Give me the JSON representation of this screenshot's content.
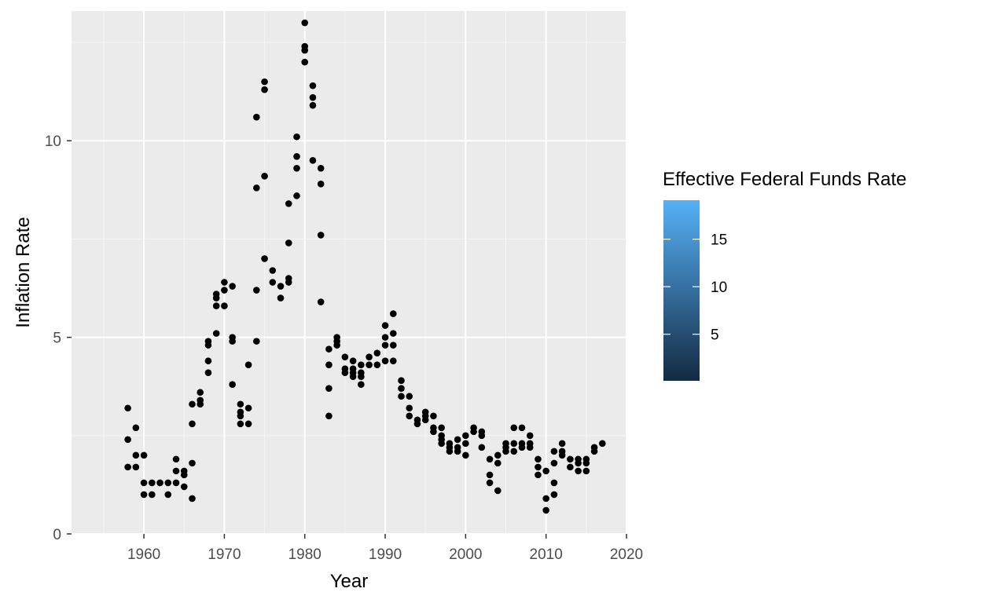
{
  "chart_data": {
    "type": "scatter",
    "title": "",
    "xlabel": "Year",
    "ylabel": "Inflation Rate",
    "xlim": [
      1951,
      2020
    ],
    "ylim": [
      0,
      13.3
    ],
    "x_ticks": [
      1960,
      1970,
      1980,
      1990,
      2000,
      2010,
      2020
    ],
    "y_ticks": [
      0,
      5,
      10
    ],
    "grid": true,
    "point_color": "#000000",
    "panel_background": "#ebebeb",
    "legend": {
      "title": "Effective Federal Funds Rate",
      "placement": "right",
      "type": "colorbar",
      "range": [
        0.1,
        19.1
      ],
      "ticks": [
        5,
        10,
        15
      ],
      "color_low": "#132b43",
      "color_high": "#56b1f7"
    },
    "points": [
      [
        1958,
        3.2
      ],
      [
        1958,
        2.4
      ],
      [
        1958,
        1.7
      ],
      [
        1959,
        2.7
      ],
      [
        1959,
        2.0
      ],
      [
        1959,
        1.7
      ],
      [
        1960,
        2.0
      ],
      [
        1960,
        1.3
      ],
      [
        1960,
        1.0
      ],
      [
        1961,
        1.3
      ],
      [
        1961,
        1.0
      ],
      [
        1962,
        1.3
      ],
      [
        1963,
        1.3
      ],
      [
        1963,
        1.0
      ],
      [
        1964,
        1.9
      ],
      [
        1964,
        1.6
      ],
      [
        1964,
        1.3
      ],
      [
        1965,
        1.6
      ],
      [
        1965,
        1.5
      ],
      [
        1965,
        1.2
      ],
      [
        1966,
        3.3
      ],
      [
        1966,
        2.8
      ],
      [
        1966,
        1.8
      ],
      [
        1966,
        0.9
      ],
      [
        1967,
        3.6
      ],
      [
        1967,
        3.4
      ],
      [
        1967,
        3.3
      ],
      [
        1968,
        4.9
      ],
      [
        1968,
        4.8
      ],
      [
        1968,
        4.4
      ],
      [
        1968,
        4.1
      ],
      [
        1969,
        6.1
      ],
      [
        1969,
        6.0
      ],
      [
        1969,
        5.8
      ],
      [
        1969,
        5.1
      ],
      [
        1970,
        6.4
      ],
      [
        1970,
        6.2
      ],
      [
        1970,
        5.8
      ],
      [
        1971,
        6.3
      ],
      [
        1971,
        5.0
      ],
      [
        1971,
        4.9
      ],
      [
        1971,
        3.8
      ],
      [
        1972,
        3.3
      ],
      [
        1972,
        3.1
      ],
      [
        1972,
        3.0
      ],
      [
        1972,
        2.8
      ],
      [
        1973,
        4.3
      ],
      [
        1973,
        3.2
      ],
      [
        1973,
        2.8
      ],
      [
        1974,
        10.6
      ],
      [
        1974,
        8.8
      ],
      [
        1974,
        6.2
      ],
      [
        1974,
        4.9
      ],
      [
        1975,
        11.5
      ],
      [
        1975,
        11.3
      ],
      [
        1975,
        9.1
      ],
      [
        1975,
        7.0
      ],
      [
        1976,
        6.7
      ],
      [
        1976,
        6.4
      ],
      [
        1977,
        6.3
      ],
      [
        1977,
        6.0
      ],
      [
        1978,
        8.4
      ],
      [
        1978,
        7.4
      ],
      [
        1978,
        6.5
      ],
      [
        1978,
        6.4
      ],
      [
        1979,
        10.1
      ],
      [
        1979,
        9.6
      ],
      [
        1979,
        9.3
      ],
      [
        1979,
        8.6
      ],
      [
        1980,
        13.0
      ],
      [
        1980,
        12.4
      ],
      [
        1980,
        12.3
      ],
      [
        1980,
        12.0
      ],
      [
        1981,
        11.4
      ],
      [
        1981,
        11.1
      ],
      [
        1981,
        10.9
      ],
      [
        1981,
        9.5
      ],
      [
        1982,
        9.3
      ],
      [
        1982,
        8.9
      ],
      [
        1982,
        7.6
      ],
      [
        1982,
        5.9
      ],
      [
        1983,
        4.7
      ],
      [
        1983,
        4.3
      ],
      [
        1983,
        3.7
      ],
      [
        1983,
        3.0
      ],
      [
        1984,
        5.0
      ],
      [
        1984,
        4.9
      ],
      [
        1984,
        4.8
      ],
      [
        1985,
        4.5
      ],
      [
        1985,
        4.2
      ],
      [
        1985,
        4.1
      ],
      [
        1986,
        4.4
      ],
      [
        1986,
        4.2
      ],
      [
        1986,
        4.1
      ],
      [
        1986,
        4.0
      ],
      [
        1987,
        4.3
      ],
      [
        1987,
        4.1
      ],
      [
        1987,
        4.0
      ],
      [
        1987,
        3.8
      ],
      [
        1988,
        4.5
      ],
      [
        1988,
        4.3
      ],
      [
        1989,
        4.6
      ],
      [
        1989,
        4.3
      ],
      [
        1990,
        5.3
      ],
      [
        1990,
        5.0
      ],
      [
        1990,
        4.8
      ],
      [
        1990,
        4.4
      ],
      [
        1991,
        5.6
      ],
      [
        1991,
        5.1
      ],
      [
        1991,
        4.8
      ],
      [
        1991,
        4.4
      ],
      [
        1992,
        3.9
      ],
      [
        1992,
        3.7
      ],
      [
        1992,
        3.5
      ],
      [
        1993,
        3.5
      ],
      [
        1993,
        3.2
      ],
      [
        1993,
        3.0
      ],
      [
        1994,
        2.9
      ],
      [
        1994,
        2.8
      ],
      [
        1995,
        3.1
      ],
      [
        1995,
        3.0
      ],
      [
        1995,
        2.9
      ],
      [
        1996,
        3.0
      ],
      [
        1996,
        2.7
      ],
      [
        1996,
        2.6
      ],
      [
        1997,
        2.7
      ],
      [
        1997,
        2.5
      ],
      [
        1997,
        2.4
      ],
      [
        1997,
        2.3
      ],
      [
        1998,
        2.3
      ],
      [
        1998,
        2.2
      ],
      [
        1998,
        2.1
      ],
      [
        1999,
        2.4
      ],
      [
        1999,
        2.2
      ],
      [
        1999,
        2.1
      ],
      [
        2000,
        2.5
      ],
      [
        2000,
        2.3
      ],
      [
        2000,
        2.0
      ],
      [
        2001,
        2.7
      ],
      [
        2001,
        2.6
      ],
      [
        2002,
        2.6
      ],
      [
        2002,
        2.5
      ],
      [
        2002,
        2.2
      ],
      [
        2003,
        1.9
      ],
      [
        2003,
        1.5
      ],
      [
        2003,
        1.3
      ],
      [
        2004,
        2.0
      ],
      [
        2004,
        1.8
      ],
      [
        2004,
        1.1
      ],
      [
        2005,
        2.3
      ],
      [
        2005,
        2.2
      ],
      [
        2005,
        2.1
      ],
      [
        2006,
        2.7
      ],
      [
        2006,
        2.3
      ],
      [
        2006,
        2.1
      ],
      [
        2007,
        2.7
      ],
      [
        2007,
        2.3
      ],
      [
        2007,
        2.2
      ],
      [
        2008,
        2.5
      ],
      [
        2008,
        2.3
      ],
      [
        2008,
        2.2
      ],
      [
        2009,
        1.9
      ],
      [
        2009,
        1.7
      ],
      [
        2009,
        1.5
      ],
      [
        2010,
        1.6
      ],
      [
        2010,
        0.9
      ],
      [
        2010,
        0.6
      ],
      [
        2011,
        1.3
      ],
      [
        2011,
        1.0
      ],
      [
        2011,
        1.8
      ],
      [
        2011,
        2.1
      ],
      [
        2012,
        2.3
      ],
      [
        2012,
        2.1
      ],
      [
        2012,
        2.0
      ],
      [
        2013,
        1.9
      ],
      [
        2013,
        1.7
      ],
      [
        2014,
        1.9
      ],
      [
        2014,
        1.8
      ],
      [
        2014,
        1.6
      ],
      [
        2015,
        1.9
      ],
      [
        2015,
        1.8
      ],
      [
        2015,
        1.6
      ],
      [
        2016,
        2.1
      ],
      [
        2016,
        2.2
      ],
      [
        2017,
        2.3
      ]
    ]
  }
}
